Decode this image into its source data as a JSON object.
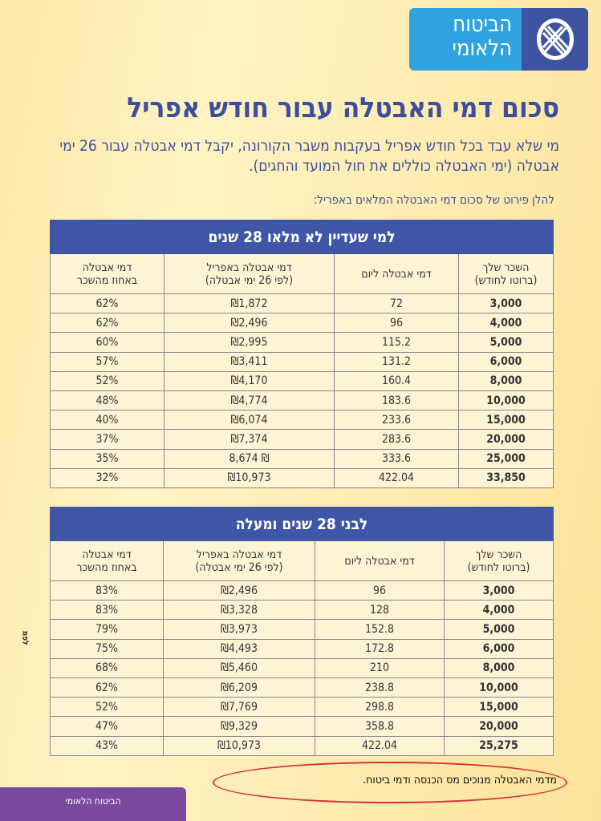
{
  "logo": {
    "text_line1": "הביטוח",
    "text_line2": "הלאומי"
  },
  "title": "סכום דמי האבטלה עבור חודש אפריל",
  "intro": "מי שלא עבד בכל חודש אפריל בעקבות משבר הקורונה, יקבל דמי אבטלה עבור 26 ימי אבטלה (ימי האבטלה כוללים את חול המועד והחגים).",
  "subtitle": "להלן פירוט של סכום דמי האבטלה המלאים באפריל:",
  "columns": [
    "השכר שלך\n(ברוטו לחודש)",
    "דמי אבטלה ליום",
    "דמי אבטלה באפריל\n(לפי 26 ימי אבטלה)",
    "דמי אבטלה\nבאחוז מהשכר"
  ],
  "tables": [
    {
      "title": "למי שעדיין לא מלאו 28 שנים",
      "rows": [
        [
          "3,000",
          "72",
          "₪1,872",
          "62%"
        ],
        [
          "4,000",
          "96",
          "₪2,496",
          "62%"
        ],
        [
          "5,000",
          "115.2",
          "₪2,995",
          "60%"
        ],
        [
          "6,000",
          "131.2",
          "₪3,411",
          "57%"
        ],
        [
          "8,000",
          "160.4",
          "₪4,170",
          "52%"
        ],
        [
          "10,000",
          "183.6",
          "₪4,774",
          "48%"
        ],
        [
          "15,000",
          "233.6",
          "₪6,074",
          "40%"
        ],
        [
          "20,000",
          "283.6",
          "₪7,374",
          "37%"
        ],
        [
          "25,000",
          "333.6",
          "₪ 8,674",
          "35%"
        ],
        [
          "33,850",
          "422.04",
          "₪10,973",
          "32%"
        ]
      ]
    },
    {
      "title": "לבני 28 שנים ומעלה",
      "rows": [
        [
          "3,000",
          "96",
          "₪2,496",
          "83%"
        ],
        [
          "4,000",
          "128",
          "₪3,328",
          "83%"
        ],
        [
          "5,000",
          "152.8",
          "₪3,973",
          "79%"
        ],
        [
          "6,000",
          "172.8",
          "₪4,493",
          "75%"
        ],
        [
          "8,000",
          "210",
          "₪5,460",
          "68%"
        ],
        [
          "10,000",
          "238.8",
          "₪6,209",
          "62%"
        ],
        [
          "15,000",
          "298.8",
          "₪7,769",
          "52%"
        ],
        [
          "20,000",
          "358.8",
          "₪9,329",
          "47%"
        ],
        [
          "25,275",
          "422.04",
          "₪10,973",
          "43%"
        ]
      ]
    }
  ],
  "side_label": "לפמ",
  "note": "מדמי האבטלה מנוכים מס הכנסה ודמי ביטוח.",
  "footer_tab": "הביטוח הלאומי",
  "colors": {
    "brand_blue": "#3f56a6",
    "light_blue": "#2fa3df",
    "highlight_red": "#d8303a",
    "purple": "#7a4a9f"
  }
}
